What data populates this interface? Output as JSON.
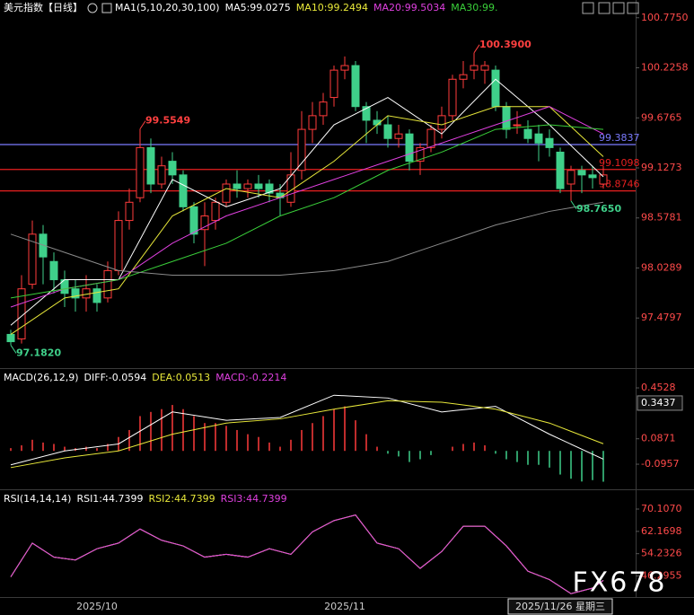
{
  "chart_data": [
    {
      "type": "candlestick",
      "title": "美元指数【日线】",
      "indicator": "MA1(5,10,20,30,100)",
      "categories": [
        null,
        null,
        null,
        null,
        null,
        null,
        null,
        null,
        "2025/10",
        null,
        null,
        null,
        null,
        null,
        null,
        null,
        null,
        null,
        null,
        null,
        null,
        null,
        null,
        null,
        null,
        null,
        null,
        null,
        null,
        null,
        null,
        "2025/11",
        null,
        null,
        null,
        null,
        null,
        null,
        null,
        null,
        null,
        null,
        null,
        null,
        null,
        null,
        null,
        null,
        null,
        null,
        null,
        null,
        null,
        null,
        null,
        null
      ],
      "cursor": {
        "index": 51,
        "label": "2025/11/26 星期三"
      },
      "open": [
        97.3,
        97.25,
        97.85,
        98.4,
        98.1,
        97.9,
        97.8,
        97.7,
        97.8,
        97.7,
        98.0,
        98.55,
        98.8,
        99.35,
        98.95,
        99.2,
        99.05,
        98.7,
        98.45,
        98.55,
        98.75,
        98.95,
        98.9,
        98.95,
        98.95,
        98.85,
        98.75,
        99.1,
        99.55,
        99.7,
        99.9,
        100.2,
        100.25,
        99.8,
        99.65,
        99.6,
        99.45,
        99.5,
        99.2,
        99.35,
        99.55,
        99.7,
        100.1,
        100.2,
        100.2,
        100.2,
        99.8,
        99.6,
        99.55,
        99.5,
        99.45,
        99.3,
        98.95,
        99.1,
        99.05,
        98.95
      ],
      "high": [
        97.35,
        97.95,
        98.55,
        98.5,
        98.2,
        98.0,
        97.9,
        97.95,
        97.85,
        98.1,
        98.65,
        98.9,
        99.5549,
        99.45,
        99.25,
        99.3,
        99.1,
        98.75,
        98.75,
        98.8,
        99.0,
        99.1,
        99.0,
        99.05,
        99.0,
        98.95,
        99.3,
        99.75,
        99.85,
        99.95,
        100.25,
        100.35,
        100.3,
        99.85,
        99.75,
        99.7,
        99.6,
        99.55,
        99.4,
        99.6,
        99.8,
        100.15,
        100.3,
        100.39,
        100.3,
        100.25,
        99.85,
        99.75,
        99.65,
        99.6,
        99.55,
        99.35,
        99.15,
        99.15,
        99.15,
        99.15
      ],
      "low": [
        97.182,
        97.2,
        97.8,
        97.85,
        97.75,
        97.6,
        97.55,
        97.55,
        97.55,
        97.65,
        97.95,
        98.45,
        98.75,
        98.85,
        98.9,
        98.95,
        98.65,
        98.3,
        98.05,
        98.45,
        98.7,
        98.8,
        98.8,
        98.8,
        98.75,
        98.6,
        98.7,
        99.0,
        99.4,
        99.6,
        99.8,
        100.1,
        99.75,
        99.4,
        99.5,
        99.35,
        99.35,
        99.1,
        99.05,
        99.3,
        99.45,
        99.65,
        100.0,
        100.1,
        100.05,
        99.75,
        99.45,
        99.5,
        99.4,
        99.2,
        99.25,
        98.85,
        98.765,
        98.85,
        98.9,
        98.9
      ],
      "close": [
        97.22,
        97.8,
        98.4,
        98.15,
        97.9,
        97.75,
        97.7,
        97.8,
        97.65,
        98.0,
        98.55,
        98.75,
        99.35,
        98.95,
        99.15,
        99.05,
        98.7,
        98.4,
        98.6,
        98.75,
        98.95,
        98.9,
        98.95,
        98.9,
        98.85,
        98.8,
        99.05,
        99.55,
        99.7,
        99.85,
        100.2,
        100.25,
        99.8,
        99.65,
        99.6,
        99.45,
        99.5,
        99.2,
        99.35,
        99.55,
        99.7,
        100.1,
        100.15,
        100.25,
        100.25,
        99.8,
        99.55,
        99.6,
        99.45,
        99.4,
        99.35,
        98.9,
        99.1,
        99.05,
        99.02,
        99.05
      ],
      "up_color": "#ff3b3b",
      "down_color": "#3fd08a",
      "series": [
        {
          "name": "MA5:99.0275",
          "color": "#ffffff",
          "x": [
            0,
            5,
            10,
            15,
            20,
            25,
            30,
            35,
            40,
            45,
            50,
            55
          ],
          "values": [
            97.4,
            97.9,
            97.9,
            99.0,
            98.7,
            98.9,
            99.6,
            99.9,
            99.5,
            100.1,
            99.6,
            99.03
          ]
        },
        {
          "name": "MA10:99.2494",
          "color": "#e8e83a",
          "x": [
            0,
            5,
            10,
            15,
            20,
            25,
            30,
            35,
            40,
            45,
            50,
            55
          ],
          "values": [
            97.3,
            97.7,
            97.8,
            98.6,
            98.9,
            98.8,
            99.2,
            99.7,
            99.6,
            99.8,
            99.8,
            99.25
          ]
        },
        {
          "name": "MA20:99.5034",
          "color": "#e040e0",
          "x": [
            0,
            5,
            10,
            15,
            20,
            25,
            30,
            35,
            40,
            45,
            50,
            55
          ],
          "values": [
            97.6,
            97.8,
            97.9,
            98.3,
            98.6,
            98.8,
            99.0,
            99.2,
            99.4,
            99.6,
            99.8,
            99.5
          ]
        },
        {
          "name": "MA30:99.",
          "color": "#3ad03a",
          "x": [
            0,
            5,
            10,
            15,
            20,
            25,
            30,
            35,
            40,
            45,
            50,
            55
          ],
          "values": [
            97.7,
            97.8,
            97.9,
            98.1,
            98.3,
            98.6,
            98.8,
            99.1,
            99.3,
            99.55,
            99.6,
            99.55
          ]
        },
        {
          "color": "#8a8a8a",
          "x": [
            0,
            5,
            10,
            15,
            20,
            25,
            30,
            35,
            40,
            45,
            50,
            55
          ],
          "values": [
            98.4,
            98.2,
            98.0,
            97.95,
            97.95,
            97.95,
            98.0,
            98.1,
            98.3,
            98.5,
            98.65,
            98.75
          ]
        }
      ],
      "hlines": [
        {
          "value": 99.3837,
          "color": "#7b7bff"
        },
        {
          "value": 99.1098,
          "color": "#e82020"
        },
        {
          "value": 98.8746,
          "color": "#e82020"
        }
      ],
      "annotations": [
        {
          "index": 12,
          "value": 99.5549,
          "color": "#ff4040"
        },
        {
          "index": 43,
          "value": {
            "value": 100.39,
            "label": "100.3900"
          },
          "color": "#ff4040"
        },
        {
          "index": 0,
          "value": {
            "value": 97.182,
            "label": "97.1820"
          },
          "color": "#3fd08a"
        },
        {
          "index": 52,
          "value": {
            "value": 98.765,
            "label": "98.7650"
          },
          "color": "#3fd08a"
        }
      ],
      "ylim": [
        96.93,
        100.95
      ],
      "yticks": [
        {
          "value": 100.775,
          "label": "100.7750"
        },
        100.2258,
        99.6765,
        99.1273,
        98.5781,
        98.0289,
        97.4797
      ]
    },
    {
      "type": "macd",
      "title": "MACD(26,12,9)",
      "series": [
        {
          "name": "DIFF:-0.0594",
          "color": "#ffffff",
          "x": [
            0,
            5,
            10,
            15,
            20,
            25,
            30,
            35,
            40,
            45,
            50,
            55
          ],
          "values": [
            -0.1,
            0.0,
            0.05,
            0.28,
            0.22,
            0.24,
            0.4,
            0.38,
            0.28,
            0.32,
            0.12,
            -0.0594
          ]
        },
        {
          "name": "DEA:0.0513",
          "color": "#e8e83a",
          "x": [
            0,
            5,
            10,
            15,
            20,
            25,
            30,
            35,
            40,
            45,
            50,
            55
          ],
          "values": [
            -0.12,
            -0.05,
            0.0,
            0.12,
            0.2,
            0.23,
            0.3,
            0.36,
            0.35,
            0.3,
            0.2,
            0.0513
          ]
        }
      ],
      "histogram": {
        "name": "MACD:-0.2214",
        "color": "#e040e0",
        "up_color": "#ff3b3b",
        "down_color": "#3fd08a",
        "values": [
          0.02,
          0.04,
          0.08,
          0.06,
          0.05,
          0.03,
          0.02,
          0.03,
          0.02,
          0.05,
          0.1,
          0.15,
          0.25,
          0.28,
          0.3,
          0.33,
          0.3,
          0.25,
          0.2,
          0.2,
          0.18,
          0.15,
          0.12,
          0.1,
          0.06,
          0.03,
          0.08,
          0.15,
          0.2,
          0.25,
          0.3,
          0.32,
          0.22,
          0.12,
          0.03,
          -0.02,
          -0.04,
          -0.08,
          -0.06,
          -0.03,
          0.0,
          0.03,
          0.05,
          0.06,
          0.04,
          -0.02,
          -0.06,
          -0.08,
          -0.1,
          -0.1,
          -0.12,
          -0.17,
          -0.2,
          -0.22,
          -0.21,
          -0.2214
        ]
      },
      "current_value": 0.3437,
      "ylim": [
        -0.276,
        0.582
      ],
      "yticks": [
        0.4528,
        0.0871,
        -0.0957
      ]
    },
    {
      "type": "rsi",
      "title": "RSI(14,14,14)",
      "series": [
        {
          "name": "RSI1:44.7399",
          "color": "#ffffff",
          "x": [
            0,
            2,
            4,
            6,
            8,
            10,
            12,
            14,
            16,
            18,
            20,
            22,
            24,
            26,
            28,
            30,
            32,
            34,
            36,
            38,
            40,
            42,
            44,
            46,
            48,
            50,
            52,
            54,
            55
          ],
          "values": [
            46,
            58,
            53,
            52,
            56,
            58,
            63,
            59,
            57,
            53,
            54,
            53,
            56,
            54,
            62,
            66,
            68,
            58,
            56,
            49,
            55,
            64,
            64,
            57,
            48,
            45,
            40,
            42,
            44.7399
          ]
        },
        {
          "name": "RSI2:44.7399",
          "color": "#e8e83a",
          "x": [
            0,
            2,
            4,
            6,
            8,
            10,
            12,
            14,
            16,
            18,
            20,
            22,
            24,
            26,
            28,
            30,
            32,
            34,
            36,
            38,
            40,
            42,
            44,
            46,
            48,
            50,
            52,
            54,
            55
          ],
          "values": [
            46,
            58,
            53,
            52,
            56,
            58,
            63,
            59,
            57,
            53,
            54,
            53,
            56,
            54,
            62,
            66,
            68,
            58,
            56,
            49,
            55,
            64,
            64,
            57,
            48,
            45,
            40,
            42,
            44.7399
          ]
        },
        {
          "name": "RSI3:44.7399",
          "color": "#e040e0",
          "x": [
            0,
            2,
            4,
            6,
            8,
            10,
            12,
            14,
            16,
            18,
            20,
            22,
            24,
            26,
            28,
            30,
            32,
            34,
            36,
            38,
            40,
            42,
            44,
            46,
            48,
            50,
            52,
            54,
            55
          ],
          "values": [
            46,
            58,
            53,
            52,
            56,
            58,
            63,
            59,
            57,
            53,
            54,
            53,
            56,
            54,
            62,
            66,
            68,
            58,
            56,
            49,
            55,
            64,
            64,
            57,
            48,
            45,
            40,
            42,
            44.7399
          ]
        }
      ],
      "ylim": [
        38.8,
        76.5
      ],
      "yticks": [
        {
          "value": 70.107,
          "label": "70.1070"
        },
        62.1698,
        54.2326,
        46.2955
      ]
    }
  ],
  "watermark": "FX678"
}
